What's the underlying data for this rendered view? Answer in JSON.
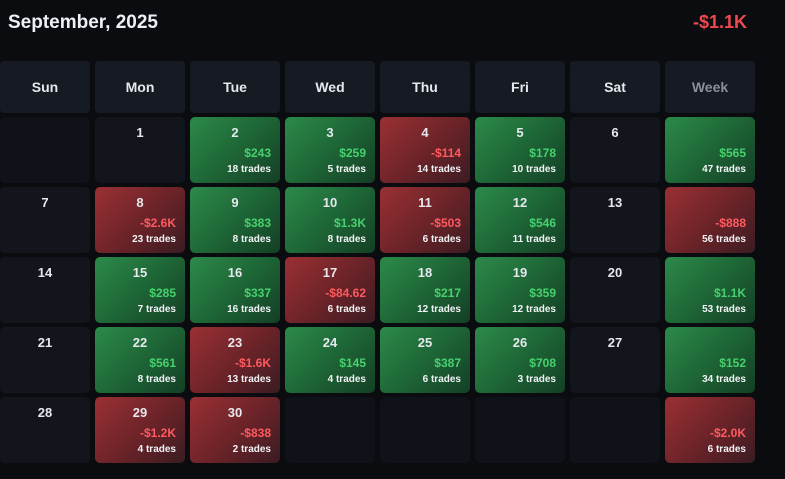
{
  "header": {
    "title": "September, 2025",
    "total": "-$1.1K"
  },
  "colors": {
    "positive": "#47d16e",
    "negative": "#ff5a5f",
    "background": "#0a0c10"
  },
  "weekdays": [
    "Sun",
    "Mon",
    "Tue",
    "Wed",
    "Thu",
    "Fri",
    "Sat",
    "Week"
  ],
  "weeks": [
    {
      "days": [
        {
          "day": "",
          "kind": "blank"
        },
        {
          "day": "1",
          "kind": "empty"
        },
        {
          "day": "2",
          "kind": "pos",
          "pnl": "$243",
          "trades": "18 trades"
        },
        {
          "day": "3",
          "kind": "pos",
          "pnl": "$259",
          "trades": "5 trades"
        },
        {
          "day": "4",
          "kind": "neg",
          "pnl": "-$114",
          "trades": "14 trades"
        },
        {
          "day": "5",
          "kind": "pos",
          "pnl": "$178",
          "trades": "10 trades"
        },
        {
          "day": "6",
          "kind": "empty"
        }
      ],
      "summary": {
        "kind": "pos",
        "pnl": "$565",
        "trades": "47 trades"
      }
    },
    {
      "days": [
        {
          "day": "7",
          "kind": "empty"
        },
        {
          "day": "8",
          "kind": "neg",
          "pnl": "-$2.6K",
          "trades": "23 trades"
        },
        {
          "day": "9",
          "kind": "pos",
          "pnl": "$383",
          "trades": "8 trades"
        },
        {
          "day": "10",
          "kind": "pos",
          "pnl": "$1.3K",
          "trades": "8 trades"
        },
        {
          "day": "11",
          "kind": "neg",
          "pnl": "-$503",
          "trades": "6 trades"
        },
        {
          "day": "12",
          "kind": "pos",
          "pnl": "$546",
          "trades": "11 trades"
        },
        {
          "day": "13",
          "kind": "empty"
        }
      ],
      "summary": {
        "kind": "neg",
        "pnl": "-$888",
        "trades": "56 trades"
      }
    },
    {
      "days": [
        {
          "day": "14",
          "kind": "empty"
        },
        {
          "day": "15",
          "kind": "pos",
          "pnl": "$285",
          "trades": "7 trades"
        },
        {
          "day": "16",
          "kind": "pos",
          "pnl": "$337",
          "trades": "16 trades"
        },
        {
          "day": "17",
          "kind": "neg",
          "pnl": "-$84.62",
          "trades": "6 trades"
        },
        {
          "day": "18",
          "kind": "pos",
          "pnl": "$217",
          "trades": "12 trades"
        },
        {
          "day": "19",
          "kind": "pos",
          "pnl": "$359",
          "trades": "12 trades"
        },
        {
          "day": "20",
          "kind": "empty"
        }
      ],
      "summary": {
        "kind": "pos",
        "pnl": "$1.1K",
        "trades": "53 trades"
      }
    },
    {
      "days": [
        {
          "day": "21",
          "kind": "empty"
        },
        {
          "day": "22",
          "kind": "pos",
          "pnl": "$561",
          "trades": "8 trades"
        },
        {
          "day": "23",
          "kind": "neg",
          "pnl": "-$1.6K",
          "trades": "13 trades"
        },
        {
          "day": "24",
          "kind": "pos",
          "pnl": "$145",
          "trades": "4 trades"
        },
        {
          "day": "25",
          "kind": "pos",
          "pnl": "$387",
          "trades": "6 trades"
        },
        {
          "day": "26",
          "kind": "pos",
          "pnl": "$708",
          "trades": "3 trades"
        },
        {
          "day": "27",
          "kind": "empty"
        }
      ],
      "summary": {
        "kind": "pos",
        "pnl": "$152",
        "trades": "34 trades"
      }
    },
    {
      "days": [
        {
          "day": "28",
          "kind": "empty"
        },
        {
          "day": "29",
          "kind": "neg",
          "pnl": "-$1.2K",
          "trades": "4 trades"
        },
        {
          "day": "30",
          "kind": "neg",
          "pnl": "-$838",
          "trades": "2 trades"
        },
        {
          "day": "",
          "kind": "blank"
        },
        {
          "day": "",
          "kind": "blank"
        },
        {
          "day": "",
          "kind": "blank"
        },
        {
          "day": "",
          "kind": "blank"
        }
      ],
      "summary": {
        "kind": "neg",
        "pnl": "-$2.0K",
        "trades": "6 trades"
      }
    }
  ]
}
